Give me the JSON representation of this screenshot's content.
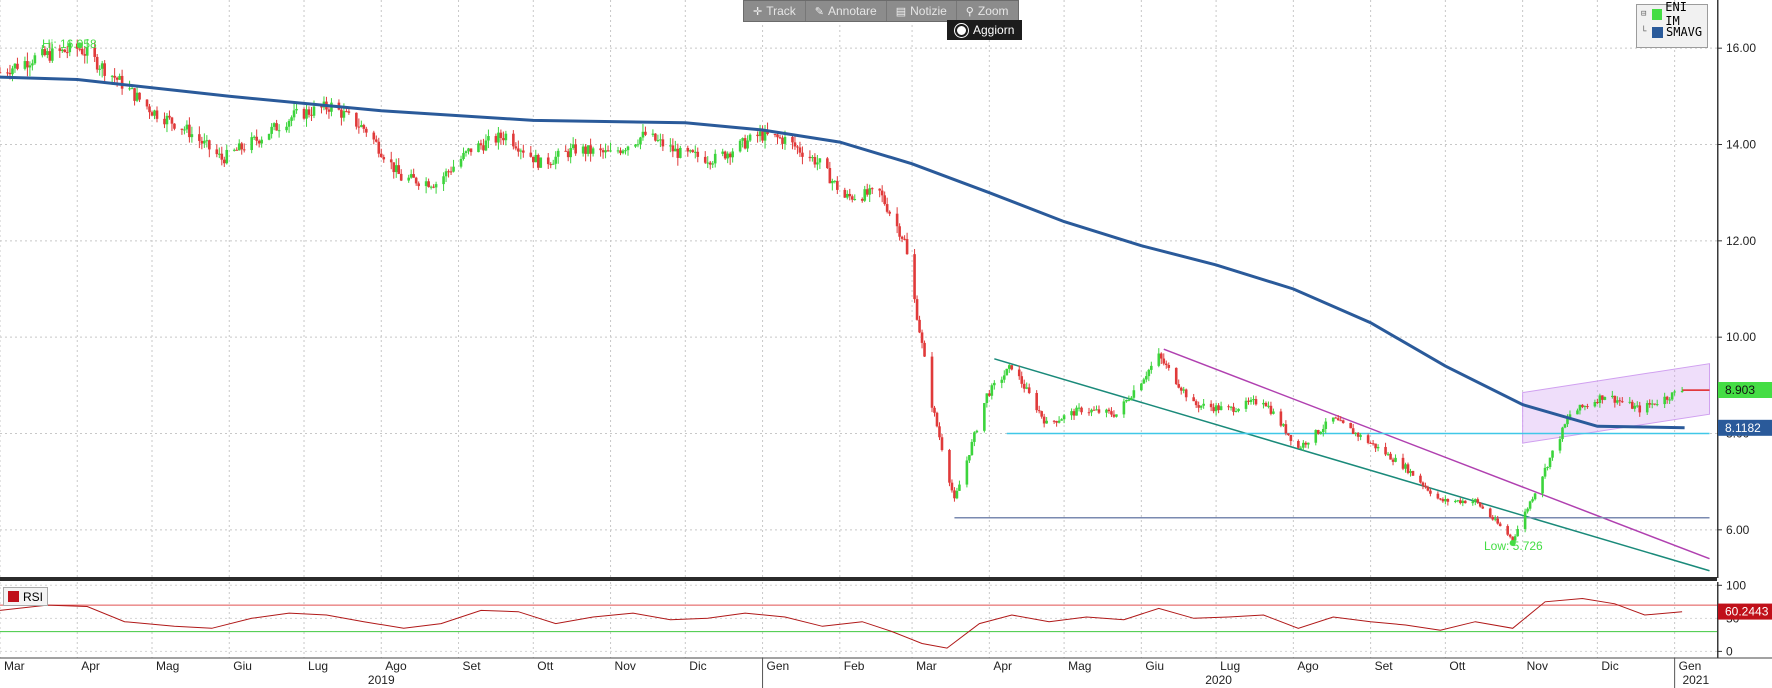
{
  "toolbar": {
    "track_label": "Track",
    "annotate_label": "Annotare",
    "news_label": "Notizie",
    "zoom_label": "Zoom",
    "refresh_label": "Aggiorn"
  },
  "legend": {
    "items": [
      {
        "label": "ENI IM",
        "color": "#44dd44"
      },
      {
        "label": "SMAVG",
        "color": "#2a5a9a"
      }
    ]
  },
  "rsi_legend": {
    "label": "RSI",
    "color": "#c0101a"
  },
  "annotations": {
    "hi_label": "Hi: 16.058",
    "low_label": "Low: 5.726"
  },
  "chart_data": [
    {
      "type": "line",
      "title": "",
      "series": [
        {
          "name": "ENI IM",
          "color": "#3cc83c",
          "points": [
            [
              "2019-03-01",
              15.5
            ],
            [
              "2019-03-15",
              15.8
            ],
            [
              "2019-04-02",
              16.0
            ],
            [
              "2019-04-16",
              15.4
            ],
            [
              "2019-05-01",
              14.7
            ],
            [
              "2019-05-15",
              14.3
            ],
            [
              "2019-05-29",
              13.7
            ],
            [
              "2019-06-12",
              14.1
            ],
            [
              "2019-06-27",
              14.6
            ],
            [
              "2019-07-12",
              14.8
            ],
            [
              "2019-07-26",
              14.3
            ],
            [
              "2019-08-09",
              13.3
            ],
            [
              "2019-08-23",
              13.2
            ],
            [
              "2019-09-06",
              13.9
            ],
            [
              "2019-09-20",
              14.2
            ],
            [
              "2019-10-04",
              13.6
            ],
            [
              "2019-10-18",
              13.9
            ],
            [
              "2019-11-01",
              13.8
            ],
            [
              "2019-11-15",
              14.2
            ],
            [
              "2019-11-29",
              13.8
            ],
            [
              "2019-12-13",
              13.7
            ],
            [
              "2019-12-31",
              14.2
            ],
            [
              "2020-01-10",
              14.1
            ],
            [
              "2020-01-24",
              13.6
            ],
            [
              "2020-02-03",
              12.9
            ],
            [
              "2020-02-17",
              13.0
            ],
            [
              "2020-02-27",
              12.0
            ],
            [
              "2020-03-09",
              8.6
            ],
            [
              "2020-03-18",
              6.6
            ],
            [
              "2020-03-31",
              8.8
            ],
            [
              "2020-04-10",
              9.4
            ],
            [
              "2020-04-24",
              8.2
            ],
            [
              "2020-05-08",
              8.5
            ],
            [
              "2020-05-22",
              8.4
            ],
            [
              "2020-06-08",
              9.6
            ],
            [
              "2020-06-22",
              8.6
            ],
            [
              "2020-07-06",
              8.5
            ],
            [
              "2020-07-20",
              8.7
            ],
            [
              "2020-08-03",
              7.7
            ],
            [
              "2020-08-17",
              8.3
            ],
            [
              "2020-09-01",
              7.8
            ],
            [
              "2020-09-15",
              7.3
            ],
            [
              "2020-09-29",
              6.6
            ],
            [
              "2020-10-13",
              6.6
            ],
            [
              "2020-10-28",
              5.8
            ],
            [
              "2020-11-06",
              6.8
            ],
            [
              "2020-11-20",
              8.4
            ],
            [
              "2020-12-04",
              8.8
            ],
            [
              "2020-12-18",
              8.5
            ],
            [
              "2021-01-04",
              8.9
            ]
          ]
        },
        {
          "name": "SMAVG",
          "color": "#2a5a9a",
          "points": [
            [
              "2019-03-01",
              15.4
            ],
            [
              "2019-04-01",
              15.35
            ],
            [
              "2019-06-01",
              15.0
            ],
            [
              "2019-08-01",
              14.7
            ],
            [
              "2019-10-01",
              14.5
            ],
            [
              "2019-12-01",
              14.45
            ],
            [
              "2020-01-01",
              14.3
            ],
            [
              "2020-02-01",
              14.05
            ],
            [
              "2020-03-01",
              13.6
            ],
            [
              "2020-04-01",
              13.0
            ],
            [
              "2020-05-01",
              12.4
            ],
            [
              "2020-06-01",
              11.9
            ],
            [
              "2020-07-01",
              11.5
            ],
            [
              "2020-08-01",
              11.0
            ],
            [
              "2020-09-01",
              10.3
            ],
            [
              "2020-10-01",
              9.4
            ],
            [
              "2020-11-01",
              8.6
            ],
            [
              "2020-12-01",
              8.15
            ],
            [
              "2021-01-05",
              8.12
            ]
          ]
        }
      ],
      "last_values": [
        {
          "value": "8.903",
          "color": "#44dd44"
        },
        {
          "value": "8.1182",
          "color": "#2a5a9a"
        }
      ],
      "ylim": [
        5.0,
        17.0
      ],
      "y_ticks": [
        "6.00",
        "8.00",
        "10.00",
        "12.00",
        "14.00",
        "16.00"
      ],
      "x_ticks": [
        "Mar",
        "Apr",
        "Mag",
        "Giu",
        "Lug",
        "Ago",
        "Set",
        "Ott",
        "Nov",
        "Dic",
        "Gen",
        "Feb",
        "Mar",
        "Apr",
        "Mag",
        "Giu",
        "Lug",
        "Ago",
        "Set",
        "Ott",
        "Nov",
        "Dic",
        "Gen"
      ],
      "x_tick_dates": [
        "2019-03-01",
        "2019-04-01",
        "2019-05-01",
        "2019-06-01",
        "2019-07-01",
        "2019-08-01",
        "2019-09-01",
        "2019-10-01",
        "2019-11-01",
        "2019-12-01",
        "2020-01-01",
        "2020-02-01",
        "2020-03-01",
        "2020-04-01",
        "2020-05-01",
        "2020-06-01",
        "2020-07-01",
        "2020-08-01",
        "2020-09-01",
        "2020-10-01",
        "2020-11-01",
        "2020-12-01",
        "2021-01-01"
      ],
      "year_labels": [
        "2019",
        "2020",
        "2021"
      ],
      "xlim": [
        "2019-03-01",
        "2021-01-18"
      ],
      "grid": true,
      "legend_position": "top-right",
      "trendlines": [
        {
          "from": [
            "2020-04-03",
            9.55
          ],
          "to": [
            "2021-01-15",
            5.15
          ],
          "color": "#1a8a7a"
        },
        {
          "from": [
            "2020-06-10",
            9.75
          ],
          "to": [
            "2021-01-15",
            5.4
          ],
          "color": "#b040b0"
        },
        {
          "from": [
            "2020-04-08",
            8.0
          ],
          "to": [
            "2021-01-15",
            8.0
          ],
          "color": "#40c8e8"
        },
        {
          "from": [
            "2020-03-18",
            6.25
          ],
          "to": [
            "2021-01-15",
            6.25
          ],
          "color": "#7a8ab0"
        },
        {
          "from": [
            "2021-01-04",
            8.9
          ],
          "to": [
            "2021-01-15",
            8.9
          ],
          "color": "#e02020"
        }
      ],
      "channel": {
        "upper": [
          [
            "2020-11-01",
            8.85
          ],
          [
            "2021-01-15",
            9.45
          ]
        ],
        "lower": [
          [
            "2020-11-01",
            7.8
          ],
          [
            "2021-01-15",
            8.4
          ]
        ],
        "color": "#d0a0f0"
      }
    },
    {
      "type": "line",
      "title": "",
      "series": [
        {
          "name": "RSI",
          "color": "#b01818",
          "points": [
            [
              "2019-03-01",
              62
            ],
            [
              "2019-03-20",
              70
            ],
            [
              "2019-04-05",
              68
            ],
            [
              "2019-04-20",
              45
            ],
            [
              "2019-05-10",
              38
            ],
            [
              "2019-05-25",
              35
            ],
            [
              "2019-06-10",
              50
            ],
            [
              "2019-06-25",
              58
            ],
            [
              "2019-07-10",
              55
            ],
            [
              "2019-07-25",
              45
            ],
            [
              "2019-08-10",
              35
            ],
            [
              "2019-08-25",
              42
            ],
            [
              "2019-09-10",
              62
            ],
            [
              "2019-09-25",
              60
            ],
            [
              "2019-10-10",
              42
            ],
            [
              "2019-10-25",
              52
            ],
            [
              "2019-11-10",
              58
            ],
            [
              "2019-11-25",
              48
            ],
            [
              "2019-12-10",
              50
            ],
            [
              "2019-12-25",
              58
            ],
            [
              "2020-01-10",
              52
            ],
            [
              "2020-01-25",
              38
            ],
            [
              "2020-02-10",
              45
            ],
            [
              "2020-02-22",
              30
            ],
            [
              "2020-03-05",
              12
            ],
            [
              "2020-03-15",
              5
            ],
            [
              "2020-03-28",
              42
            ],
            [
              "2020-04-10",
              55
            ],
            [
              "2020-04-25",
              45
            ],
            [
              "2020-05-10",
              52
            ],
            [
              "2020-05-25",
              48
            ],
            [
              "2020-06-08",
              65
            ],
            [
              "2020-06-22",
              50
            ],
            [
              "2020-07-06",
              52
            ],
            [
              "2020-07-20",
              55
            ],
            [
              "2020-08-03",
              35
            ],
            [
              "2020-08-17",
              52
            ],
            [
              "2020-09-01",
              45
            ],
            [
              "2020-09-15",
              40
            ],
            [
              "2020-09-29",
              32
            ],
            [
              "2020-10-13",
              45
            ],
            [
              "2020-10-28",
              35
            ],
            [
              "2020-11-10",
              75
            ],
            [
              "2020-11-25",
              80
            ],
            [
              "2020-12-08",
              72
            ],
            [
              "2020-12-20",
              55
            ],
            [
              "2021-01-04",
              60
            ]
          ]
        }
      ],
      "last_values": [
        {
          "value": "60.2443",
          "color": "#c0101a"
        }
      ],
      "ylim": [
        -10,
        105
      ],
      "y_ticks": [
        "0",
        "50",
        "100"
      ],
      "reference_lines": [
        70,
        30
      ],
      "grid": true
    }
  ]
}
